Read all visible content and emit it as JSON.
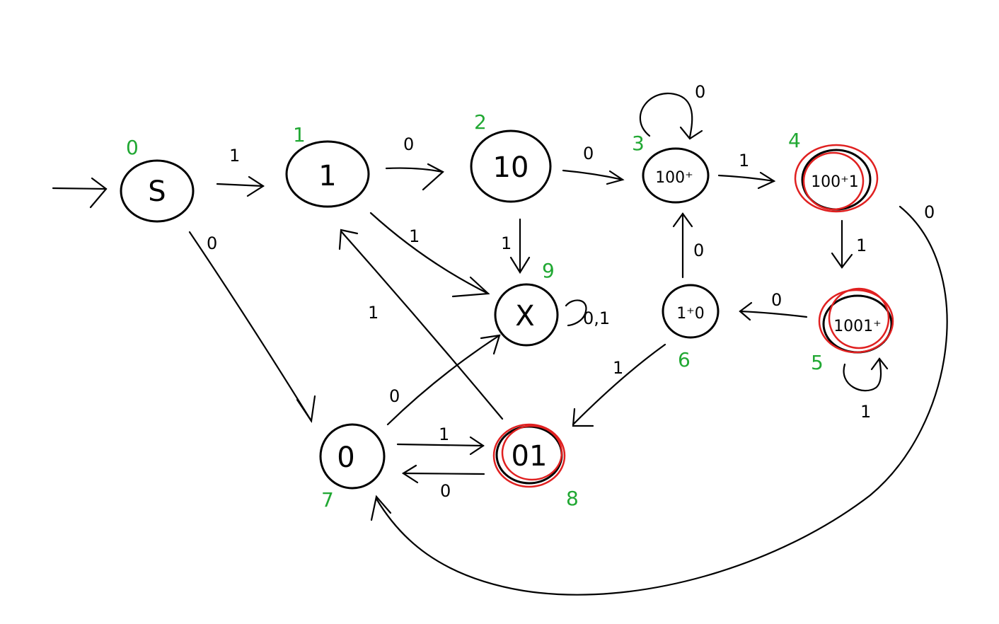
{
  "diagram": {
    "states": [
      {
        "id": "s0",
        "label": "S",
        "index": "0",
        "accept": false
      },
      {
        "id": "s1",
        "label": "1",
        "index": "1",
        "accept": false
      },
      {
        "id": "s2",
        "label": "10",
        "index": "2",
        "accept": false
      },
      {
        "id": "s3",
        "label": "100⁺",
        "index": "3",
        "accept": false
      },
      {
        "id": "s4",
        "label": "100⁺1",
        "index": "4",
        "accept": true
      },
      {
        "id": "s5",
        "label": "1001⁺",
        "index": "5",
        "accept": true
      },
      {
        "id": "s6",
        "label": "1⁺0",
        "index": "6",
        "accept": false
      },
      {
        "id": "s7",
        "label": "0",
        "index": "7",
        "accept": false
      },
      {
        "id": "s8",
        "label": "01",
        "index": "8",
        "accept": true
      },
      {
        "id": "s9",
        "label": "X",
        "index": "9",
        "accept": false
      }
    ],
    "transitions": [
      {
        "from": "s0",
        "to": "s1",
        "label": "1"
      },
      {
        "from": "s0",
        "to": "s7",
        "label": "0"
      },
      {
        "from": "s1",
        "to": "s2",
        "label": "0"
      },
      {
        "from": "s1",
        "to": "s9",
        "label": "1"
      },
      {
        "from": "s2",
        "to": "s3",
        "label": "0"
      },
      {
        "from": "s2",
        "to": "s9",
        "label": "1"
      },
      {
        "from": "s3",
        "to": "s3",
        "label": "0"
      },
      {
        "from": "s3",
        "to": "s4",
        "label": "1"
      },
      {
        "from": "s4",
        "to": "s5",
        "label": "1"
      },
      {
        "from": "s4",
        "to": "s7",
        "label": "0"
      },
      {
        "from": "s5",
        "to": "s5",
        "label": "1"
      },
      {
        "from": "s5",
        "to": "s6",
        "label": "0"
      },
      {
        "from": "s6",
        "to": "s3",
        "label": "0"
      },
      {
        "from": "s6",
        "to": "s8",
        "label": "1"
      },
      {
        "from": "s7",
        "to": "s8",
        "label": "1"
      },
      {
        "from": "s7",
        "to": "s9",
        "label": "0"
      },
      {
        "from": "s8",
        "to": "s7",
        "label": "0"
      },
      {
        "from": "s8",
        "to": "s1",
        "label": "1"
      },
      {
        "from": "s9",
        "to": "s9",
        "label": "0,1"
      }
    ],
    "colors": {
      "stroke": "#000000",
      "accept_ring": "#e02020",
      "index_label": "#21a833"
    }
  }
}
